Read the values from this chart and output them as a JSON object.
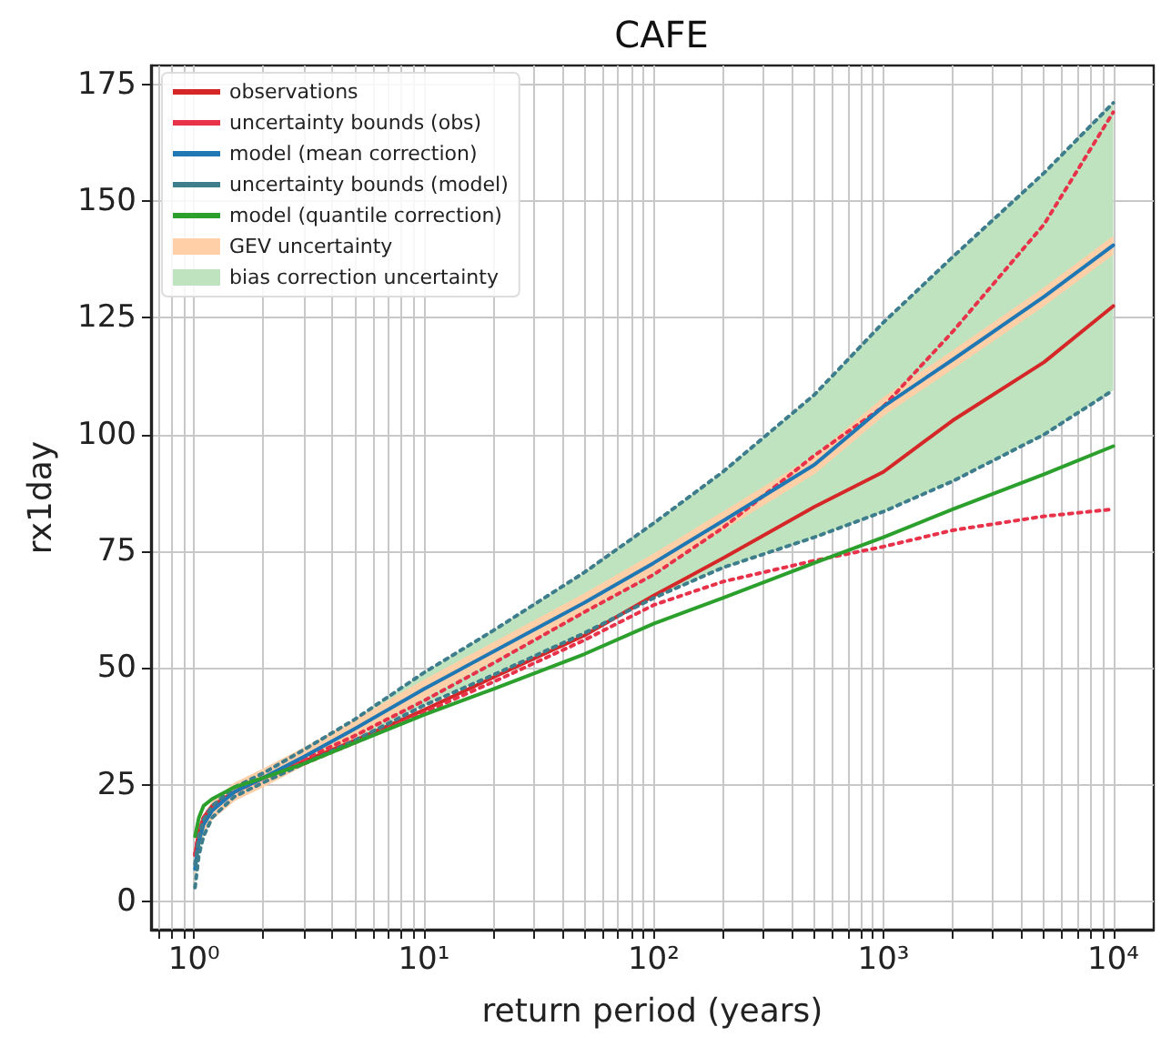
{
  "chart_data": {
    "type": "line",
    "title": "CAFE",
    "xlabel": "return period (years)",
    "ylabel": "rx1day",
    "log": "x",
    "grid": true,
    "legend": "top left",
    "marker": "none",
    "xlim": [
      0.65,
      15000
    ],
    "ylim": [
      -6,
      179
    ],
    "xticks": [
      {
        "value": 0.7,
        "label": null
      },
      {
        "value": 0.8,
        "label": null
      },
      {
        "value": 0.9,
        "label": null
      },
      {
        "value": 1,
        "label": "10⁰"
      },
      {
        "value": 2,
        "label": null
      },
      {
        "value": 3,
        "label": null
      },
      {
        "value": 4,
        "label": null
      },
      {
        "value": 5,
        "label": null
      },
      {
        "value": 6,
        "label": null
      },
      {
        "value": 7,
        "label": null
      },
      {
        "value": 8,
        "label": null
      },
      {
        "value": 9,
        "label": null
      },
      {
        "value": 10,
        "label": "10¹"
      },
      {
        "value": 20,
        "label": null
      },
      {
        "value": 30,
        "label": null
      },
      {
        "value": 40,
        "label": null
      },
      {
        "value": 50,
        "label": null
      },
      {
        "value": 60,
        "label": null
      },
      {
        "value": 70,
        "label": null
      },
      {
        "value": 80,
        "label": null
      },
      {
        "value": 90,
        "label": null
      },
      {
        "value": 100,
        "label": "10²"
      },
      {
        "value": 200,
        "label": null
      },
      {
        "value": 300,
        "label": null
      },
      {
        "value": 400,
        "label": null
      },
      {
        "value": 500,
        "label": null
      },
      {
        "value": 600,
        "label": null
      },
      {
        "value": 700,
        "label": null
      },
      {
        "value": 800,
        "label": null
      },
      {
        "value": 900,
        "label": null
      },
      {
        "value": 1000,
        "label": "10³"
      },
      {
        "value": 2000,
        "label": null
      },
      {
        "value": 3000,
        "label": null
      },
      {
        "value": 4000,
        "label": null
      },
      {
        "value": 5000,
        "label": null
      },
      {
        "value": 6000,
        "label": null
      },
      {
        "value": 7000,
        "label": null
      },
      {
        "value": 8000,
        "label": null
      },
      {
        "value": 9000,
        "label": null
      },
      {
        "value": 10000,
        "label": "10⁴"
      }
    ],
    "yticks": [
      0,
      25,
      50,
      75,
      100,
      125,
      150,
      175
    ],
    "x": [
      1.01,
      1.05,
      1.1,
      1.2,
      1.5,
      2,
      3,
      5,
      10,
      20,
      50,
      100,
      200,
      500,
      1000,
      2000,
      5000,
      10000
    ],
    "series": [
      {
        "name": "bias correction uncertainty",
        "color": "#bfe3bf",
        "values": [
          null,
          null,
          null,
          null,
          null,
          null,
          null,
          null,
          null,
          null,
          null,
          null,
          null,
          null,
          null,
          null,
          null,
          null
        ],
        "lower": [
          3,
          10,
          14,
          18,
          22.5,
          25.5,
          29.5,
          34.5,
          42,
          48.5,
          57.5,
          65,
          71.5,
          78,
          83.5,
          90,
          100,
          109.5
        ],
        "upper": [
          8,
          14,
          17.5,
          20.5,
          24.5,
          27.5,
          32.5,
          39,
          49,
          58,
          70.5,
          81,
          92,
          108.5,
          124,
          138,
          156,
          171
        ]
      },
      {
        "name": "GEV uncertainty",
        "color": "#ffcfa8",
        "values": [
          null,
          null,
          null,
          null,
          null,
          null,
          null,
          null,
          null,
          null,
          null,
          null,
          null,
          null,
          null,
          null,
          null,
          null
        ],
        "lower": [
          5,
          11,
          14.5,
          17.5,
          21.5,
          24.5,
          29,
          35,
          43.5,
          51.5,
          62,
          70.5,
          79.5,
          91.5,
          104,
          114,
          127.5,
          138.5
        ],
        "upper": [
          9,
          15,
          18.5,
          21.5,
          25.5,
          28.5,
          33,
          39,
          47.5,
          55.5,
          66,
          74.5,
          83.5,
          95.5,
          108,
          118,
          131.5,
          142.5
        ]
      },
      {
        "name": "observations",
        "color": "#d62728",
        "line_style": "solid",
        "values": [
          10,
          15,
          18,
          20.5,
          23.5,
          26.5,
          30,
          34.5,
          41,
          48,
          57,
          65.5,
          73.5,
          84.5,
          92,
          103,
          115.5,
          127.5
        ]
      },
      {
        "name": "uncertainty bounds (obs)",
        "color": "#e8324a",
        "line_style": "dotted",
        "values": [
          10,
          15,
          18,
          20.5,
          23.5,
          26.5,
          30.5,
          35.5,
          43,
          51,
          62,
          70,
          80,
          95.5,
          106,
          122,
          145,
          169
        ]
      },
      {
        "color": "#e8324a",
        "line_style": "dotted",
        "values": [
          10,
          15,
          18,
          20.5,
          23.5,
          26.5,
          29.5,
          34,
          40.5,
          47,
          56,
          63.5,
          68.5,
          73,
          76,
          79.5,
          82.5,
          84
        ]
      },
      {
        "name": "model (mean correction)",
        "color": "#1f77b4",
        "line_style": "solid",
        "values": [
          7,
          13,
          16.5,
          19.5,
          23.5,
          26.5,
          31,
          37,
          45.5,
          53.5,
          64,
          72.5,
          81.5,
          93.5,
          106,
          116,
          129.5,
          140.5
        ]
      },
      {
        "name": "uncertainty bounds (model)",
        "color": "#3d7d8c",
        "line_style": "dotted",
        "values": [
          8,
          14,
          17.5,
          20.5,
          24.5,
          27.5,
          32.5,
          39,
          49,
          58,
          70.5,
          81,
          92,
          108.5,
          124,
          138,
          156,
          171
        ]
      },
      {
        "color": "#3d7d8c",
        "line_style": "dotted",
        "values": [
          3,
          10,
          14,
          18,
          22.5,
          25.5,
          29.5,
          34.5,
          42,
          48.5,
          57.5,
          65,
          71.5,
          78,
          83.5,
          90,
          100,
          109.5
        ]
      },
      {
        "name": "model (quantile correction)",
        "color": "#2ca02c",
        "line_style": "solid",
        "values": [
          14,
          18,
          20.5,
          22,
          24.5,
          26.5,
          29.5,
          34,
          40,
          45.5,
          53,
          59.5,
          65,
          72.5,
          78,
          84,
          91.5,
          97.5
        ]
      }
    ]
  }
}
